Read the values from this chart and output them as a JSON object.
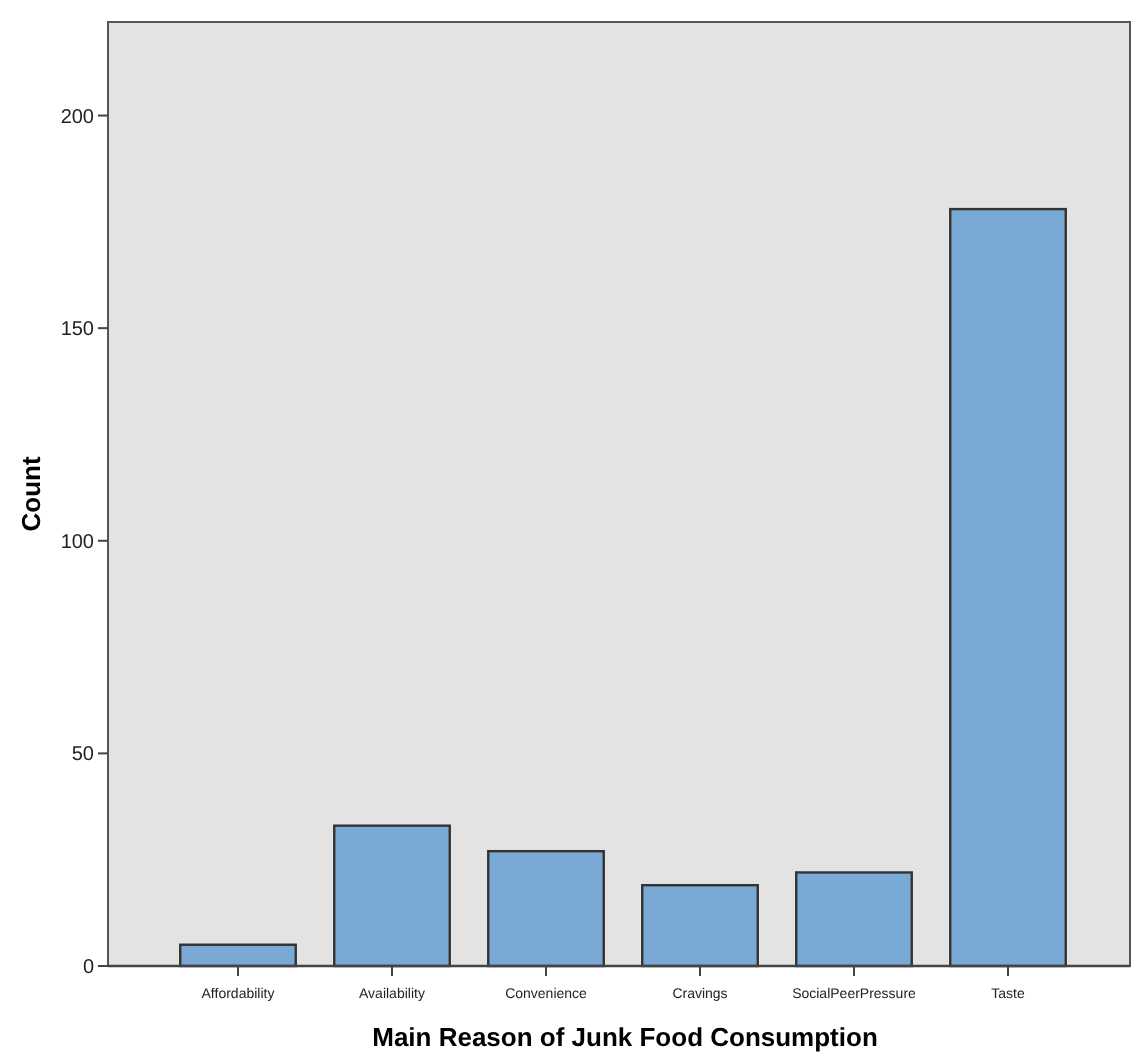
{
  "chart_data": {
    "type": "bar",
    "xlabel": "Main Reason of Junk Food Consumption",
    "ylabel": "Count",
    "categories": [
      "Affordability",
      "Availability",
      "Convenience",
      "Cravings",
      "SocialPeerPressure",
      "Taste"
    ],
    "values": [
      5,
      33,
      27,
      19,
      22,
      178
    ],
    "color": "#7ba9d6",
    "ylim": [
      0,
      222
    ],
    "yticks": [
      0,
      50,
      100,
      150,
      200
    ],
    "grid": false
  }
}
